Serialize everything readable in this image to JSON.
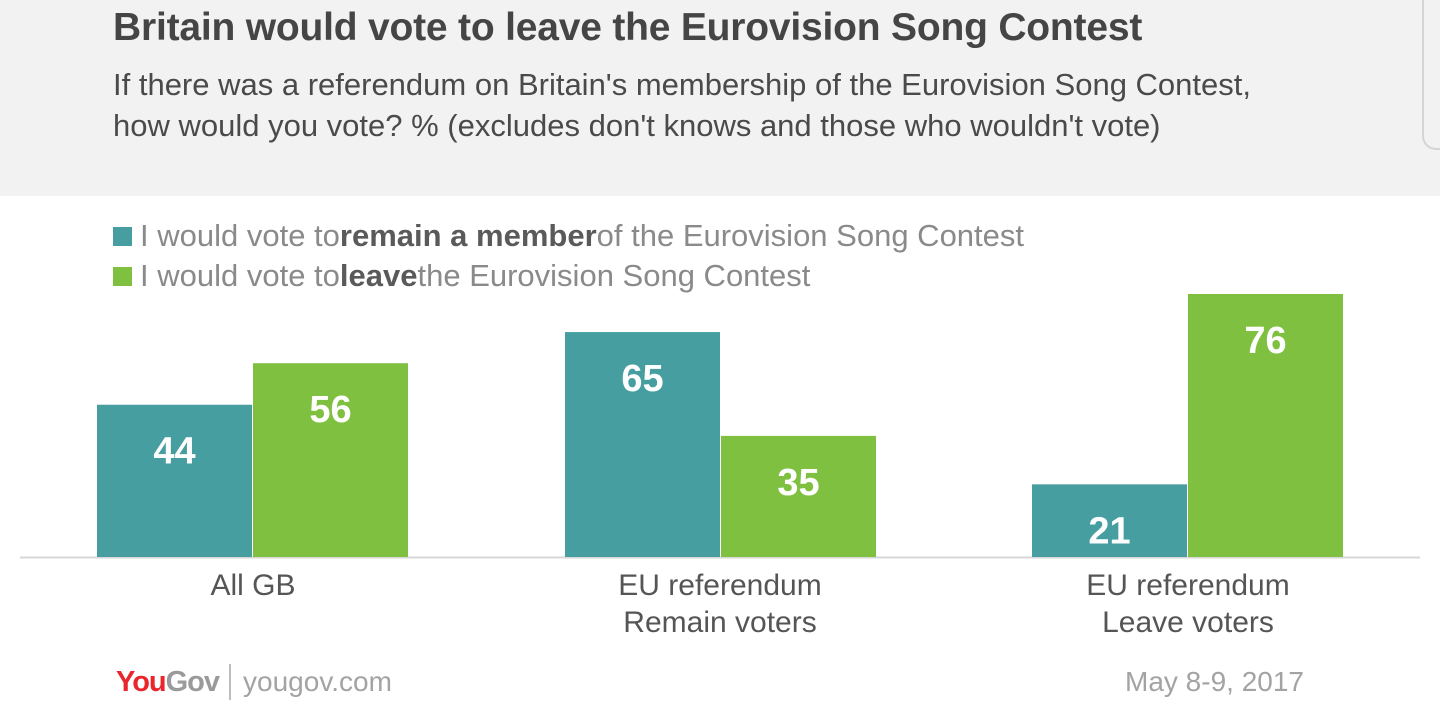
{
  "title": "Britain would vote to leave the Eurovision Song Contest",
  "subtitle": "If there was a referendum on Britain's membership of the Eurovision Song Contest, how would you vote? % (excludes don't knows and those who wouldn't vote)",
  "legend": [
    {
      "pre": "I would vote to ",
      "bold": "remain a member",
      "post": " of the Eurovision Song Contest",
      "color": "#469ea1"
    },
    {
      "pre": "I would vote to ",
      "bold": "leave",
      "post": " the Eurovision Song Contest",
      "color": "#80c040"
    }
  ],
  "chart_data": {
    "type": "bar",
    "categories": [
      [
        "All GB"
      ],
      [
        "EU referendum",
        "Remain voters"
      ],
      [
        "EU referendum",
        "Leave voters"
      ]
    ],
    "series": [
      {
        "name": "I would vote to remain a member of the Eurovision Song Contest",
        "values": [
          44,
          65,
          21
        ],
        "color": "#469ea1"
      },
      {
        "name": "I would vote to leave the Eurovision Song Contest",
        "values": [
          56,
          35,
          76
        ],
        "color": "#80c040"
      }
    ],
    "ylim": [
      0,
      76
    ],
    "grid": false,
    "legend_position": "top-left",
    "data_labels": true
  },
  "footer": {
    "logo_you": "You",
    "logo_gov": "Gov",
    "site": "yougov.com",
    "date": "May 8-9, 2017"
  }
}
